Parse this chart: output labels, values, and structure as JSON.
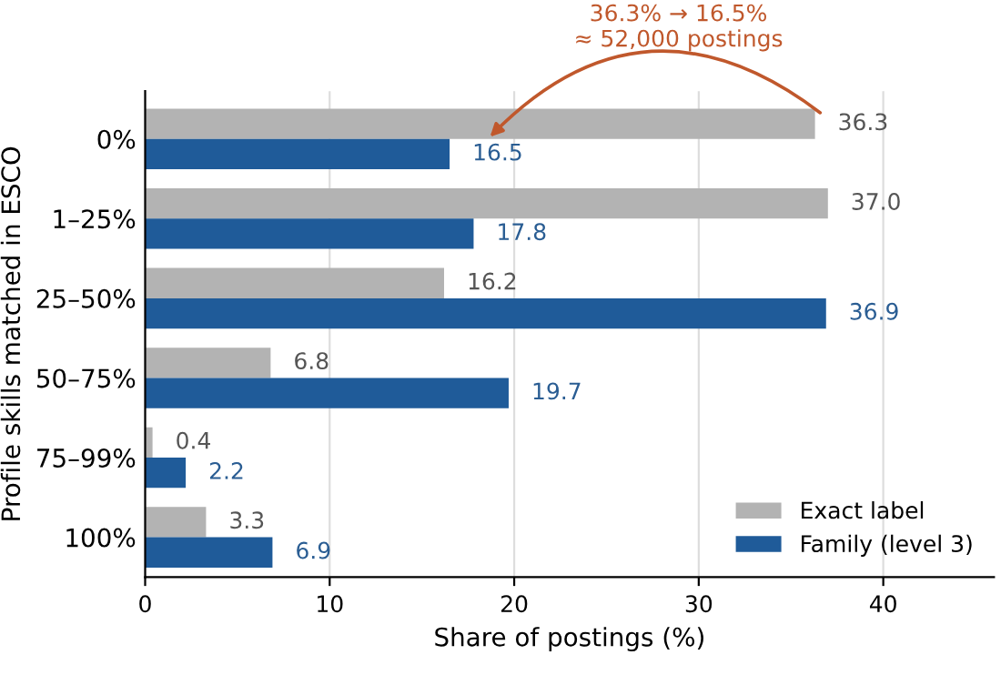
{
  "chart_data": {
    "type": "bar",
    "orientation": "horizontal",
    "xlabel": "Share of postings (%)",
    "ylabel": "Profile skills matched in ESCO",
    "categories": [
      "0%",
      "1–25%",
      "25–50%",
      "50–75%",
      "75–99%",
      "100%"
    ],
    "series": [
      {
        "name": "Exact label",
        "color": "#b3b3b3",
        "values": [
          36.3,
          37.0,
          16.2,
          6.8,
          0.4,
          3.3
        ],
        "value_labels": [
          "36.3",
          "37.0",
          "16.2",
          "6.8",
          "0.4",
          "3.3"
        ]
      },
      {
        "name": "Family (level 3)",
        "color": "#1f5b99",
        "values": [
          16.5,
          17.8,
          36.9,
          19.7,
          2.2,
          6.9
        ],
        "value_labels": [
          "16.5",
          "17.8",
          "36.9",
          "19.7",
          "2.2",
          "6.9"
        ]
      }
    ],
    "xlim": [
      0,
      46
    ],
    "xticks": [
      0,
      10,
      20,
      30,
      40
    ],
    "grid": "x",
    "legend": "bottom right",
    "annotations": [
      "36.3% → 16.5%\n≈ 52,000 postings"
    ]
  }
}
